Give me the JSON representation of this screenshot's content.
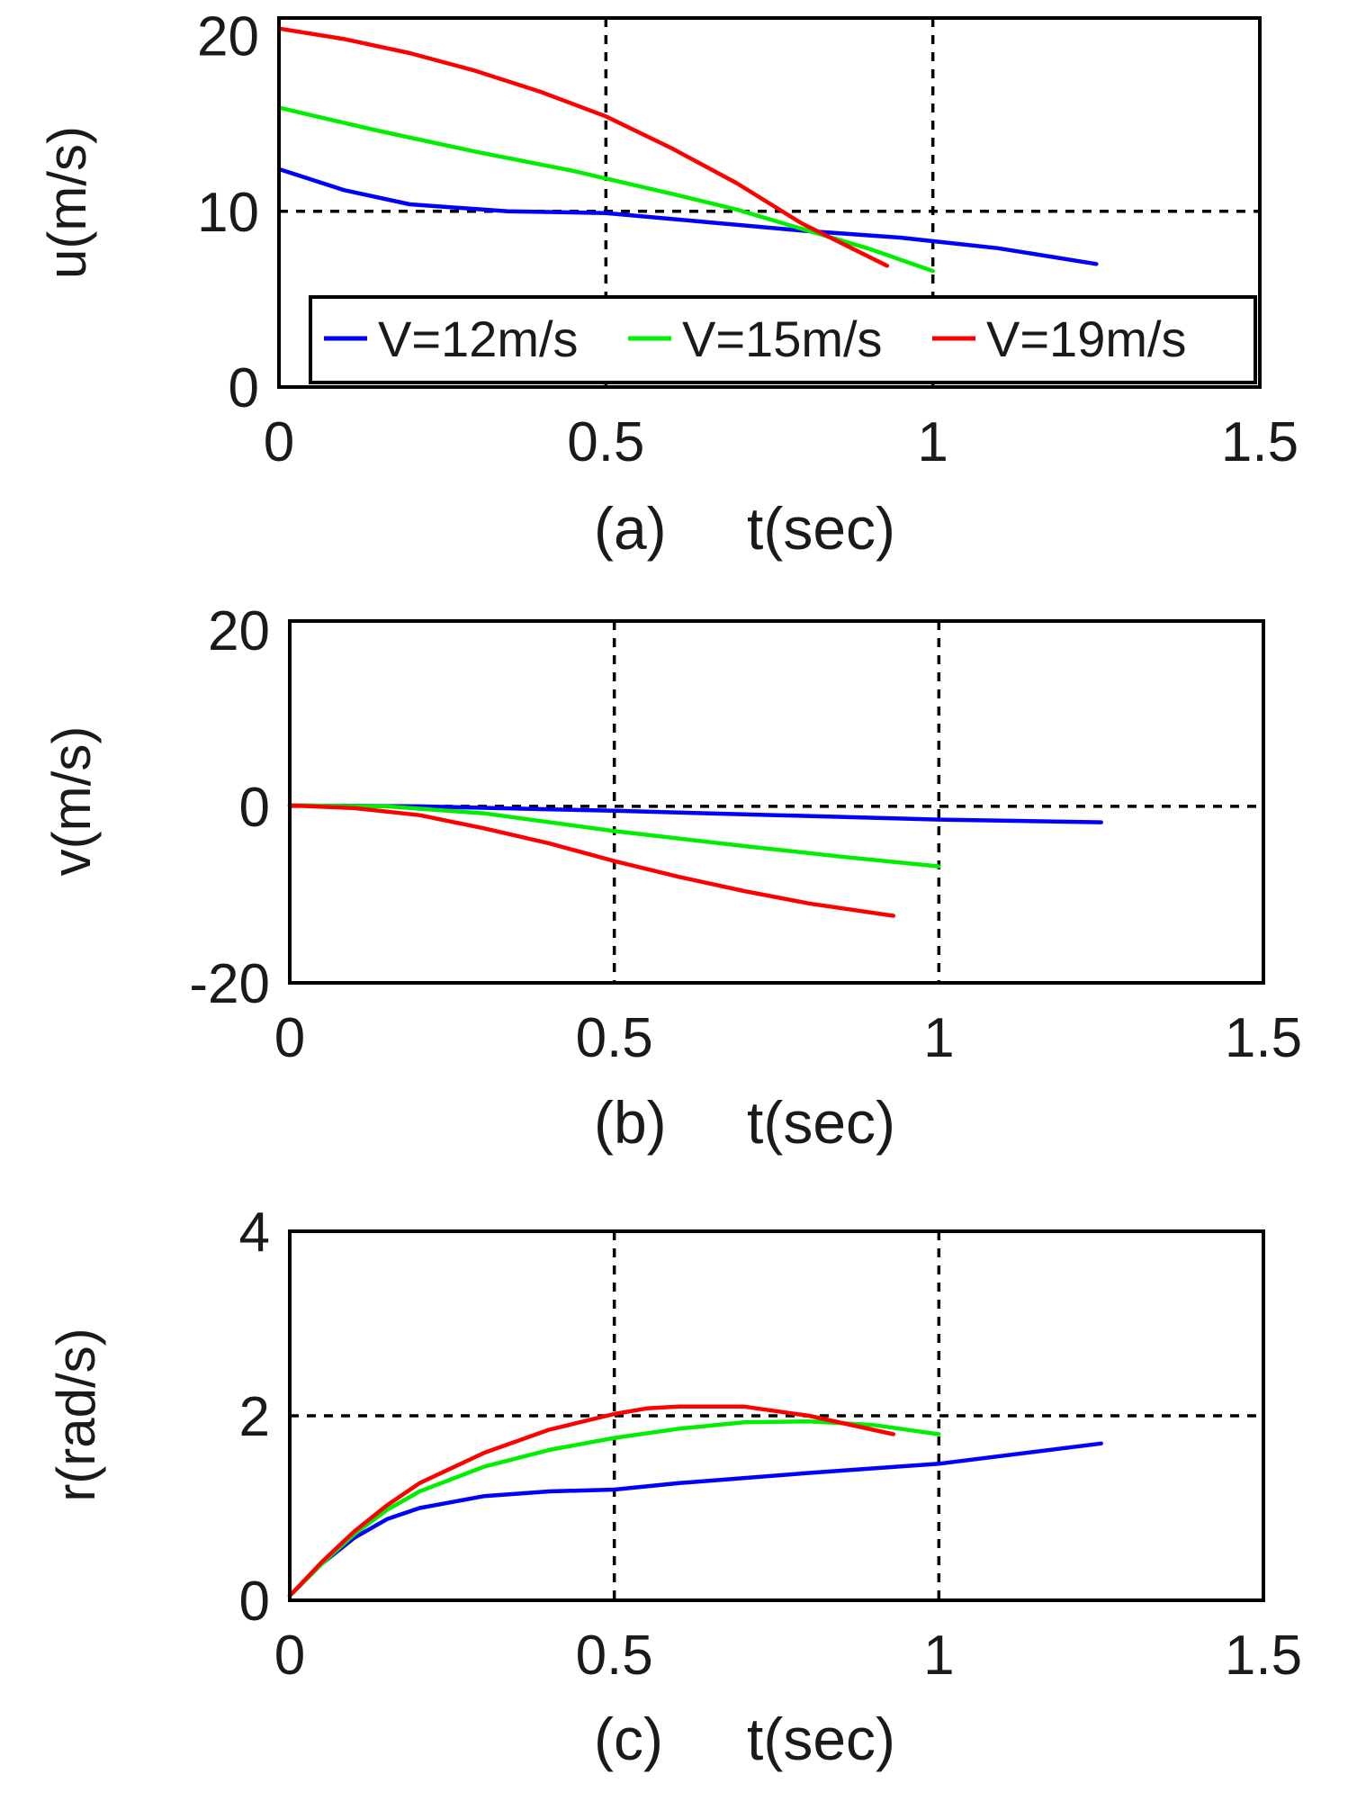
{
  "chart_data": [
    {
      "type": "line",
      "panel": "a",
      "caption": "(a)",
      "xlabel": "t(sec)",
      "ylabel": "u(m/s)",
      "xlim": [
        0,
        1.5
      ],
      "ylim": [
        0,
        21
      ],
      "xticks": [
        0,
        0.5,
        1,
        1.5
      ],
      "xtick_labels": [
        "0",
        "0.5",
        "1",
        "1.5"
      ],
      "yticks": [
        0,
        10,
        20
      ],
      "ytick_labels": [
        "0",
        "10",
        "20"
      ],
      "grid_x": [
        0.5,
        1
      ],
      "grid_y": [
        10
      ],
      "legend": {
        "placement": "bottom",
        "entries": [
          "V=12m/s",
          "V=15m/s",
          "V=19m/s"
        ]
      },
      "series": [
        {
          "name": "V=12m/s",
          "color": "#0000ff",
          "x": [
            0,
            0.1,
            0.2,
            0.35,
            0.5,
            0.65,
            0.8,
            0.95,
            1.1,
            1.25
          ],
          "y": [
            12.4,
            11.2,
            10.4,
            10.0,
            9.9,
            9.4,
            8.9,
            8.5,
            7.9,
            7.0
          ]
        },
        {
          "name": "V=15m/s",
          "color": "#00ee00",
          "x": [
            0,
            0.15,
            0.3,
            0.45,
            0.6,
            0.7,
            0.8,
            0.9,
            1.0
          ],
          "y": [
            15.9,
            14.6,
            13.4,
            12.3,
            11.0,
            10.1,
            9.0,
            7.9,
            6.6
          ]
        },
        {
          "name": "V=19m/s",
          "color": "#ff0000",
          "x": [
            0,
            0.1,
            0.2,
            0.3,
            0.4,
            0.5,
            0.6,
            0.7,
            0.8,
            0.93
          ],
          "y": [
            20.4,
            19.8,
            19.0,
            18.0,
            16.8,
            15.4,
            13.6,
            11.6,
            9.3,
            6.9
          ]
        }
      ]
    },
    {
      "type": "line",
      "panel": "b",
      "caption": "(b)",
      "xlabel": "t(sec)",
      "ylabel": "v(m/s)",
      "xlim": [
        0,
        1.5
      ],
      "ylim": [
        -20,
        21
      ],
      "xticks": [
        0,
        0.5,
        1,
        1.5
      ],
      "xtick_labels": [
        "0",
        "0.5",
        "1",
        "1.5"
      ],
      "yticks": [
        -20,
        0,
        20
      ],
      "ytick_labels": [
        "-20",
        "0",
        "20"
      ],
      "grid_x": [
        0.5,
        1
      ],
      "grid_y": [
        0
      ],
      "series": [
        {
          "name": "V=12m/s",
          "color": "#0000ff",
          "x": [
            0,
            0.2,
            0.5,
            0.75,
            1.0,
            1.25
          ],
          "y": [
            0.1,
            0.0,
            -0.5,
            -1.0,
            -1.5,
            -1.8
          ]
        },
        {
          "name": "V=15m/s",
          "color": "#00ee00",
          "x": [
            0,
            0.15,
            0.3,
            0.5,
            0.7,
            0.85,
            1.0
          ],
          "y": [
            0.1,
            0.0,
            -0.8,
            -2.8,
            -4.5,
            -5.7,
            -6.8
          ]
        },
        {
          "name": "V=19m/s",
          "color": "#ff0000",
          "x": [
            0,
            0.1,
            0.2,
            0.3,
            0.4,
            0.5,
            0.6,
            0.7,
            0.8,
            0.93
          ],
          "y": [
            0.1,
            -0.2,
            -1.0,
            -2.5,
            -4.2,
            -6.2,
            -8.0,
            -9.6,
            -11.0,
            -12.4
          ]
        }
      ]
    },
    {
      "type": "line",
      "panel": "c",
      "caption": "(c)",
      "xlabel": "t(sec)",
      "ylabel": "r(rad/s)",
      "xlim": [
        0,
        1.5
      ],
      "ylim": [
        0,
        4
      ],
      "xticks": [
        0,
        0.5,
        1,
        1.5
      ],
      "xtick_labels": [
        "0",
        "0.5",
        "1",
        "1.5"
      ],
      "yticks": [
        0,
        2,
        4
      ],
      "ytick_labels": [
        "0",
        "2",
        "4"
      ],
      "grid_x": [
        0.5,
        1
      ],
      "grid_y": [
        2
      ],
      "series": [
        {
          "name": "V=12m/s",
          "color": "#0000ff",
          "x": [
            0,
            0.05,
            0.1,
            0.15,
            0.2,
            0.3,
            0.4,
            0.5,
            0.6,
            0.8,
            1.0,
            1.25
          ],
          "y": [
            0.05,
            0.4,
            0.68,
            0.88,
            1.0,
            1.13,
            1.18,
            1.2,
            1.27,
            1.38,
            1.48,
            1.7
          ]
        },
        {
          "name": "V=15m/s",
          "color": "#00ee00",
          "x": [
            0,
            0.05,
            0.1,
            0.15,
            0.2,
            0.3,
            0.4,
            0.5,
            0.6,
            0.7,
            0.8,
            0.9,
            1.0
          ],
          "y": [
            0.05,
            0.4,
            0.72,
            0.98,
            1.18,
            1.45,
            1.63,
            1.76,
            1.86,
            1.93,
            1.94,
            1.9,
            1.8
          ]
        },
        {
          "name": "V=19m/s",
          "color": "#ff0000",
          "x": [
            0,
            0.05,
            0.1,
            0.15,
            0.2,
            0.3,
            0.4,
            0.5,
            0.55,
            0.6,
            0.7,
            0.8,
            0.93
          ],
          "y": [
            0.05,
            0.42,
            0.75,
            1.03,
            1.27,
            1.6,
            1.85,
            2.02,
            2.08,
            2.1,
            2.1,
            2.0,
            1.8
          ]
        }
      ]
    }
  ]
}
